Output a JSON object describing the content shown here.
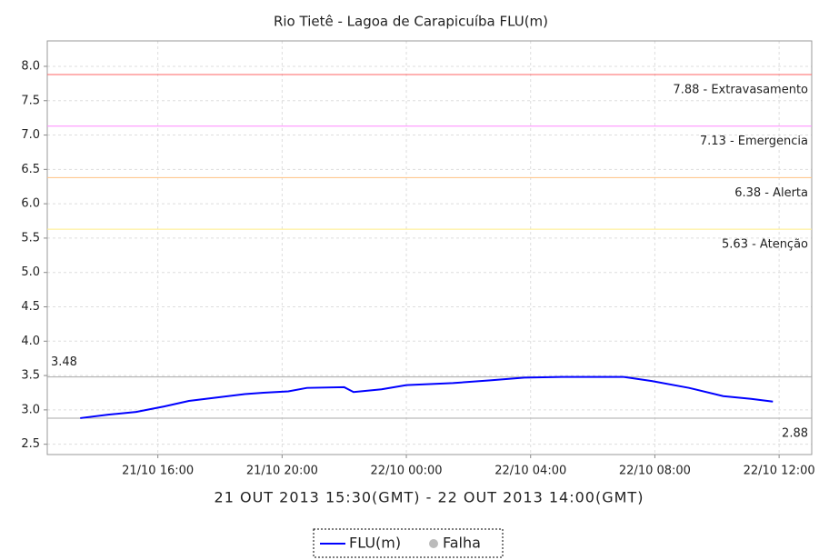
{
  "chart_data": {
    "type": "line",
    "title": "Rio Tietê - Lagoa de Carapicuíba FLU(m)",
    "x_label": "21 OUT 2013 15:30(GMT) - 22 OUT 2013 14:00(GMT)",
    "x": [
      13.5,
      14.4,
      15.3,
      16.2,
      17,
      17.9,
      18.8,
      19.4,
      20.2,
      20.8,
      22,
      22.3,
      23.2,
      24,
      25.5,
      26.7,
      27.8,
      29,
      31,
      31.9,
      33.1,
      34.2,
      35.1,
      35.8
    ],
    "series": [
      {
        "name": "FLU(m)",
        "color": "#0000ff",
        "values": [
          2.88,
          2.93,
          2.97,
          3.05,
          3.13,
          3.18,
          3.23,
          3.25,
          3.27,
          3.32,
          3.33,
          3.26,
          3.3,
          3.36,
          3.39,
          3.43,
          3.47,
          3.48,
          3.48,
          3.42,
          3.32,
          3.2,
          3.16,
          3.12
        ]
      }
    ],
    "legend_extra": {
      "name": "Falha",
      "color": "#bbbbbb"
    },
    "xlim": [
      12.44,
      37.05
    ],
    "xticks": [
      {
        "value": 16,
        "label": "21/10 16:00"
      },
      {
        "value": 20,
        "label": "21/10 20:00"
      },
      {
        "value": 24,
        "label": "22/10 00:00"
      },
      {
        "value": 28,
        "label": "22/10 04:00"
      },
      {
        "value": 32,
        "label": "22/10 08:00"
      },
      {
        "value": 36,
        "label": "22/10 12:00"
      }
    ],
    "ylim": [
      2.35,
      8.37
    ],
    "yticks": [
      {
        "value": 2.5,
        "label": "2.5"
      },
      {
        "value": 3,
        "label": "3.0"
      },
      {
        "value": 3.5,
        "label": "3.5"
      },
      {
        "value": 4,
        "label": "4.0"
      },
      {
        "value": 4.5,
        "label": "4.5"
      },
      {
        "value": 5,
        "label": "5.0"
      },
      {
        "value": 5.5,
        "label": "5.5"
      },
      {
        "value": 6,
        "label": "6.0"
      },
      {
        "value": 6.5,
        "label": "6.5"
      },
      {
        "value": 7,
        "label": "7.0"
      },
      {
        "value": 7.5,
        "label": "7.5"
      },
      {
        "value": 8,
        "label": "8.0"
      }
    ],
    "grid": true,
    "thresholds": [
      {
        "value": 7.88,
        "label": "7.88 - Extravasamento",
        "color": "#ff6666",
        "side": "right"
      },
      {
        "value": 7.13,
        "label": "7.13 - Emergencia",
        "color": "#ff88ff",
        "side": "right"
      },
      {
        "value": 6.38,
        "label": "6.38 - Alerta",
        "color": "#ffc080",
        "side": "right"
      },
      {
        "value": 5.63,
        "label": "5.63 - Atenção",
        "color": "#ffee88",
        "side": "right"
      },
      {
        "value": 3.48,
        "color": "#aaaaaa",
        "side": "left"
      },
      {
        "value": 2.88,
        "color": "#aaaaaa",
        "side": "right"
      }
    ]
  }
}
